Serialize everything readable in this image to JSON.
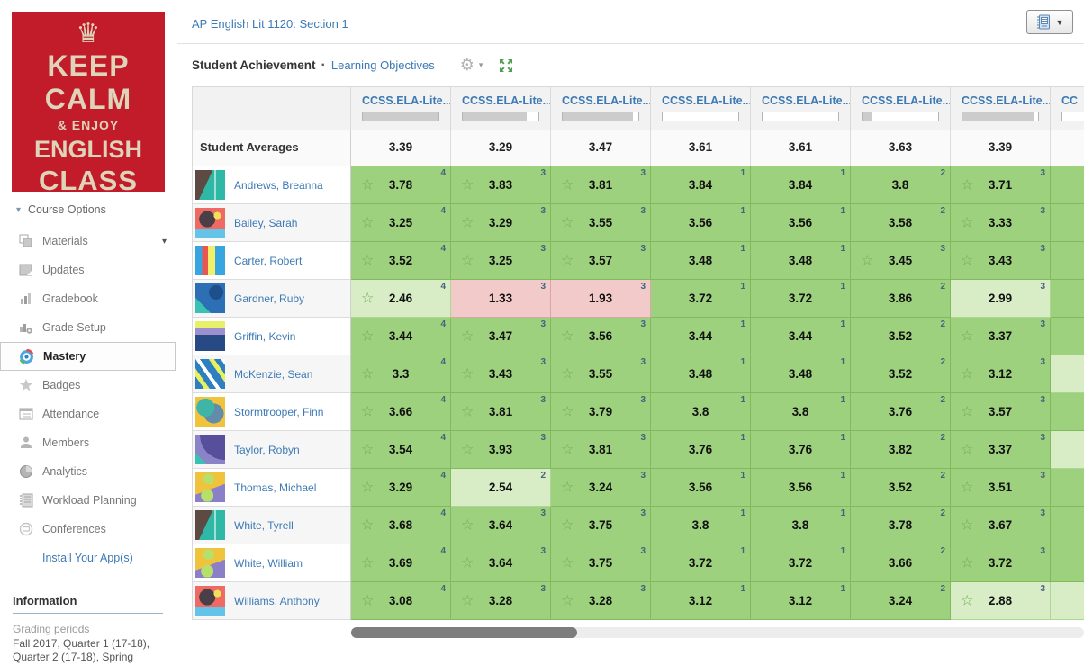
{
  "sidebar": {
    "logo": {
      "bg": "#c21b2a",
      "crown_icon": "crown-icon",
      "lines": [
        "KEEP",
        "CALM",
        "& ENJOY",
        "ENGLISH",
        "CLASS"
      ]
    },
    "course_options": {
      "label": "Course Options",
      "caret_icon": "caret-down-icon"
    },
    "items": [
      {
        "label": "Materials",
        "icon": "materials-icon",
        "caret": true,
        "active": false
      },
      {
        "label": "Updates",
        "icon": "updates-icon",
        "caret": false,
        "active": false
      },
      {
        "label": "Gradebook",
        "icon": "gradebook-icon",
        "caret": false,
        "active": false
      },
      {
        "label": "Grade Setup",
        "icon": "grade-setup-icon",
        "caret": false,
        "active": false
      },
      {
        "label": "Mastery",
        "icon": "mastery-icon",
        "caret": false,
        "active": true
      },
      {
        "label": "Badges",
        "icon": "badges-icon",
        "caret": false,
        "active": false
      },
      {
        "label": "Attendance",
        "icon": "attendance-icon",
        "caret": false,
        "active": false
      },
      {
        "label": "Members",
        "icon": "members-icon",
        "caret": false,
        "active": false
      },
      {
        "label": "Analytics",
        "icon": "analytics-icon",
        "caret": false,
        "active": false
      },
      {
        "label": "Workload Planning",
        "icon": "workload-icon",
        "caret": false,
        "active": false
      },
      {
        "label": "Conferences",
        "icon": "conferences-icon",
        "caret": false,
        "active": false
      },
      {
        "label": "Install Your App(s)",
        "icon": null,
        "caret": false,
        "active": false,
        "link": true
      }
    ],
    "information": {
      "header": "Information",
      "grading_label": "Grading periods",
      "grading_value": "Fall 2017, Quarter 1 (17-18), Quarter 2 (17-18), Spring"
    }
  },
  "header": {
    "course_title": "AP English Lit 1120: Section 1",
    "view_button": {
      "icon": "notebook-icon",
      "caret_icon": "caret-down-icon"
    }
  },
  "toolbar": {
    "title": "Student Achievement",
    "separator": "·",
    "link_label": "Learning Objectives",
    "gear_icon": "gear-icon",
    "expand_icon": "expand-icon"
  },
  "mastery_table": {
    "columns": [
      {
        "label": "CCSS.ELA-Lite...",
        "progress_pct": 100,
        "partial": false
      },
      {
        "label": "CCSS.ELA-Lite...",
        "progress_pct": 85,
        "partial": false
      },
      {
        "label": "CCSS.ELA-Lite...",
        "progress_pct": 93,
        "partial": false
      },
      {
        "label": "CCSS.ELA-Lite...",
        "progress_pct": 0,
        "partial": false
      },
      {
        "label": "CCSS.ELA-Lite...",
        "progress_pct": 0,
        "partial": false
      },
      {
        "label": "CCSS.ELA-Lite...",
        "progress_pct": 12,
        "partial": false
      },
      {
        "label": "CCSS.ELA-Lite...",
        "progress_pct": 95,
        "partial": false
      },
      {
        "label": "CC",
        "progress_pct": 0,
        "partial": true
      }
    ],
    "averages_label": "Student Averages",
    "averages": [
      "3.39",
      "3.29",
      "3.47",
      "3.61",
      "3.61",
      "3.63",
      "3.39"
    ],
    "cell_colors": {
      "green": "#9ed17e",
      "light": "#d8edc6",
      "pink": "#f2caca"
    },
    "star_icon": "star-icon",
    "students": [
      {
        "name": "Andrews, Breanna",
        "end_tone": "green",
        "cells": [
          {
            "value": "3.78",
            "count": "4",
            "star": true,
            "tone": "green"
          },
          {
            "value": "3.83",
            "count": "3",
            "star": true,
            "tone": "green"
          },
          {
            "value": "3.81",
            "count": "3",
            "star": true,
            "tone": "green"
          },
          {
            "value": "3.84",
            "count": "1",
            "star": false,
            "tone": "green"
          },
          {
            "value": "3.84",
            "count": "1",
            "star": false,
            "tone": "green"
          },
          {
            "value": "3.8",
            "count": "2",
            "star": false,
            "tone": "green"
          },
          {
            "value": "3.71",
            "count": "3",
            "star": true,
            "tone": "green"
          }
        ]
      },
      {
        "name": "Bailey, Sarah",
        "end_tone": "green",
        "cells": [
          {
            "value": "3.25",
            "count": "4",
            "star": true,
            "tone": "green"
          },
          {
            "value": "3.29",
            "count": "3",
            "star": true,
            "tone": "green"
          },
          {
            "value": "3.55",
            "count": "3",
            "star": true,
            "tone": "green"
          },
          {
            "value": "3.56",
            "count": "1",
            "star": false,
            "tone": "green"
          },
          {
            "value": "3.56",
            "count": "1",
            "star": false,
            "tone": "green"
          },
          {
            "value": "3.58",
            "count": "2",
            "star": false,
            "tone": "green"
          },
          {
            "value": "3.33",
            "count": "3",
            "star": true,
            "tone": "green"
          }
        ]
      },
      {
        "name": "Carter, Robert",
        "end_tone": "green",
        "cells": [
          {
            "value": "3.52",
            "count": "4",
            "star": true,
            "tone": "green"
          },
          {
            "value": "3.25",
            "count": "3",
            "star": true,
            "tone": "green"
          },
          {
            "value": "3.57",
            "count": "3",
            "star": true,
            "tone": "green"
          },
          {
            "value": "3.48",
            "count": "1",
            "star": false,
            "tone": "green"
          },
          {
            "value": "3.48",
            "count": "1",
            "star": false,
            "tone": "green"
          },
          {
            "value": "3.45",
            "count": "3",
            "star": true,
            "tone": "green"
          },
          {
            "value": "3.43",
            "count": "3",
            "star": true,
            "tone": "green"
          }
        ]
      },
      {
        "name": "Gardner, Ruby",
        "end_tone": "green",
        "cells": [
          {
            "value": "2.46",
            "count": "4",
            "star": true,
            "tone": "light"
          },
          {
            "value": "1.33",
            "count": "3",
            "star": false,
            "tone": "pink"
          },
          {
            "value": "1.93",
            "count": "3",
            "star": false,
            "tone": "pink"
          },
          {
            "value": "3.72",
            "count": "1",
            "star": false,
            "tone": "green"
          },
          {
            "value": "3.72",
            "count": "1",
            "star": false,
            "tone": "green"
          },
          {
            "value": "3.86",
            "count": "2",
            "star": false,
            "tone": "green"
          },
          {
            "value": "2.99",
            "count": "3",
            "star": false,
            "tone": "light"
          }
        ]
      },
      {
        "name": "Griffin, Kevin",
        "end_tone": "green",
        "cells": [
          {
            "value": "3.44",
            "count": "4",
            "star": true,
            "tone": "green"
          },
          {
            "value": "3.47",
            "count": "3",
            "star": true,
            "tone": "green"
          },
          {
            "value": "3.56",
            "count": "3",
            "star": true,
            "tone": "green"
          },
          {
            "value": "3.44",
            "count": "1",
            "star": false,
            "tone": "green"
          },
          {
            "value": "3.44",
            "count": "1",
            "star": false,
            "tone": "green"
          },
          {
            "value": "3.52",
            "count": "2",
            "star": false,
            "tone": "green"
          },
          {
            "value": "3.37",
            "count": "3",
            "star": true,
            "tone": "green"
          }
        ]
      },
      {
        "name": "McKenzie, Sean",
        "end_tone": "light",
        "cells": [
          {
            "value": "3.3",
            "count": "4",
            "star": true,
            "tone": "green"
          },
          {
            "value": "3.43",
            "count": "3",
            "star": true,
            "tone": "green"
          },
          {
            "value": "3.55",
            "count": "3",
            "star": true,
            "tone": "green"
          },
          {
            "value": "3.48",
            "count": "1",
            "star": false,
            "tone": "green"
          },
          {
            "value": "3.48",
            "count": "1",
            "star": false,
            "tone": "green"
          },
          {
            "value": "3.52",
            "count": "2",
            "star": false,
            "tone": "green"
          },
          {
            "value": "3.12",
            "count": "3",
            "star": true,
            "tone": "green"
          }
        ]
      },
      {
        "name": "Stormtrooper, Finn",
        "end_tone": "green",
        "cells": [
          {
            "value": "3.66",
            "count": "4",
            "star": true,
            "tone": "green"
          },
          {
            "value": "3.81",
            "count": "3",
            "star": true,
            "tone": "green"
          },
          {
            "value": "3.79",
            "count": "3",
            "star": true,
            "tone": "green"
          },
          {
            "value": "3.8",
            "count": "1",
            "star": false,
            "tone": "green"
          },
          {
            "value": "3.8",
            "count": "1",
            "star": false,
            "tone": "green"
          },
          {
            "value": "3.76",
            "count": "2",
            "star": false,
            "tone": "green"
          },
          {
            "value": "3.57",
            "count": "3",
            "star": true,
            "tone": "green"
          }
        ]
      },
      {
        "name": "Taylor, Robyn",
        "end_tone": "light",
        "cells": [
          {
            "value": "3.54",
            "count": "4",
            "star": true,
            "tone": "green"
          },
          {
            "value": "3.93",
            "count": "3",
            "star": true,
            "tone": "green"
          },
          {
            "value": "3.81",
            "count": "3",
            "star": true,
            "tone": "green"
          },
          {
            "value": "3.76",
            "count": "1",
            "star": false,
            "tone": "green"
          },
          {
            "value": "3.76",
            "count": "1",
            "star": false,
            "tone": "green"
          },
          {
            "value": "3.82",
            "count": "2",
            "star": false,
            "tone": "green"
          },
          {
            "value": "3.37",
            "count": "3",
            "star": true,
            "tone": "green"
          }
        ]
      },
      {
        "name": "Thomas, Michael",
        "end_tone": "green",
        "cells": [
          {
            "value": "3.29",
            "count": "4",
            "star": true,
            "tone": "green"
          },
          {
            "value": "2.54",
            "count": "2",
            "star": false,
            "tone": "light"
          },
          {
            "value": "3.24",
            "count": "3",
            "star": true,
            "tone": "green"
          },
          {
            "value": "3.56",
            "count": "1",
            "star": false,
            "tone": "green"
          },
          {
            "value": "3.56",
            "count": "1",
            "star": false,
            "tone": "green"
          },
          {
            "value": "3.52",
            "count": "2",
            "star": false,
            "tone": "green"
          },
          {
            "value": "3.51",
            "count": "3",
            "star": true,
            "tone": "green"
          }
        ]
      },
      {
        "name": "White, Tyrell",
        "end_tone": "green",
        "cells": [
          {
            "value": "3.68",
            "count": "4",
            "star": true,
            "tone": "green"
          },
          {
            "value": "3.64",
            "count": "3",
            "star": true,
            "tone": "green"
          },
          {
            "value": "3.75",
            "count": "3",
            "star": true,
            "tone": "green"
          },
          {
            "value": "3.8",
            "count": "1",
            "star": false,
            "tone": "green"
          },
          {
            "value": "3.8",
            "count": "1",
            "star": false,
            "tone": "green"
          },
          {
            "value": "3.78",
            "count": "2",
            "star": false,
            "tone": "green"
          },
          {
            "value": "3.67",
            "count": "3",
            "star": true,
            "tone": "green"
          }
        ]
      },
      {
        "name": "White, William",
        "end_tone": "green",
        "cells": [
          {
            "value": "3.69",
            "count": "4",
            "star": true,
            "tone": "green"
          },
          {
            "value": "3.64",
            "count": "3",
            "star": true,
            "tone": "green"
          },
          {
            "value": "3.75",
            "count": "3",
            "star": true,
            "tone": "green"
          },
          {
            "value": "3.72",
            "count": "1",
            "star": false,
            "tone": "green"
          },
          {
            "value": "3.72",
            "count": "1",
            "star": false,
            "tone": "green"
          },
          {
            "value": "3.66",
            "count": "2",
            "star": false,
            "tone": "green"
          },
          {
            "value": "3.72",
            "count": "3",
            "star": true,
            "tone": "green"
          }
        ]
      },
      {
        "name": "Williams, Anthony",
        "end_tone": "light",
        "cells": [
          {
            "value": "3.08",
            "count": "4",
            "star": true,
            "tone": "green"
          },
          {
            "value": "3.28",
            "count": "3",
            "star": true,
            "tone": "green"
          },
          {
            "value": "3.28",
            "count": "3",
            "star": true,
            "tone": "green"
          },
          {
            "value": "3.12",
            "count": "1",
            "star": false,
            "tone": "green"
          },
          {
            "value": "3.12",
            "count": "1",
            "star": false,
            "tone": "green"
          },
          {
            "value": "3.24",
            "count": "2",
            "star": false,
            "tone": "green"
          },
          {
            "value": "2.88",
            "count": "3",
            "star": true,
            "tone": "light"
          }
        ]
      }
    ]
  }
}
